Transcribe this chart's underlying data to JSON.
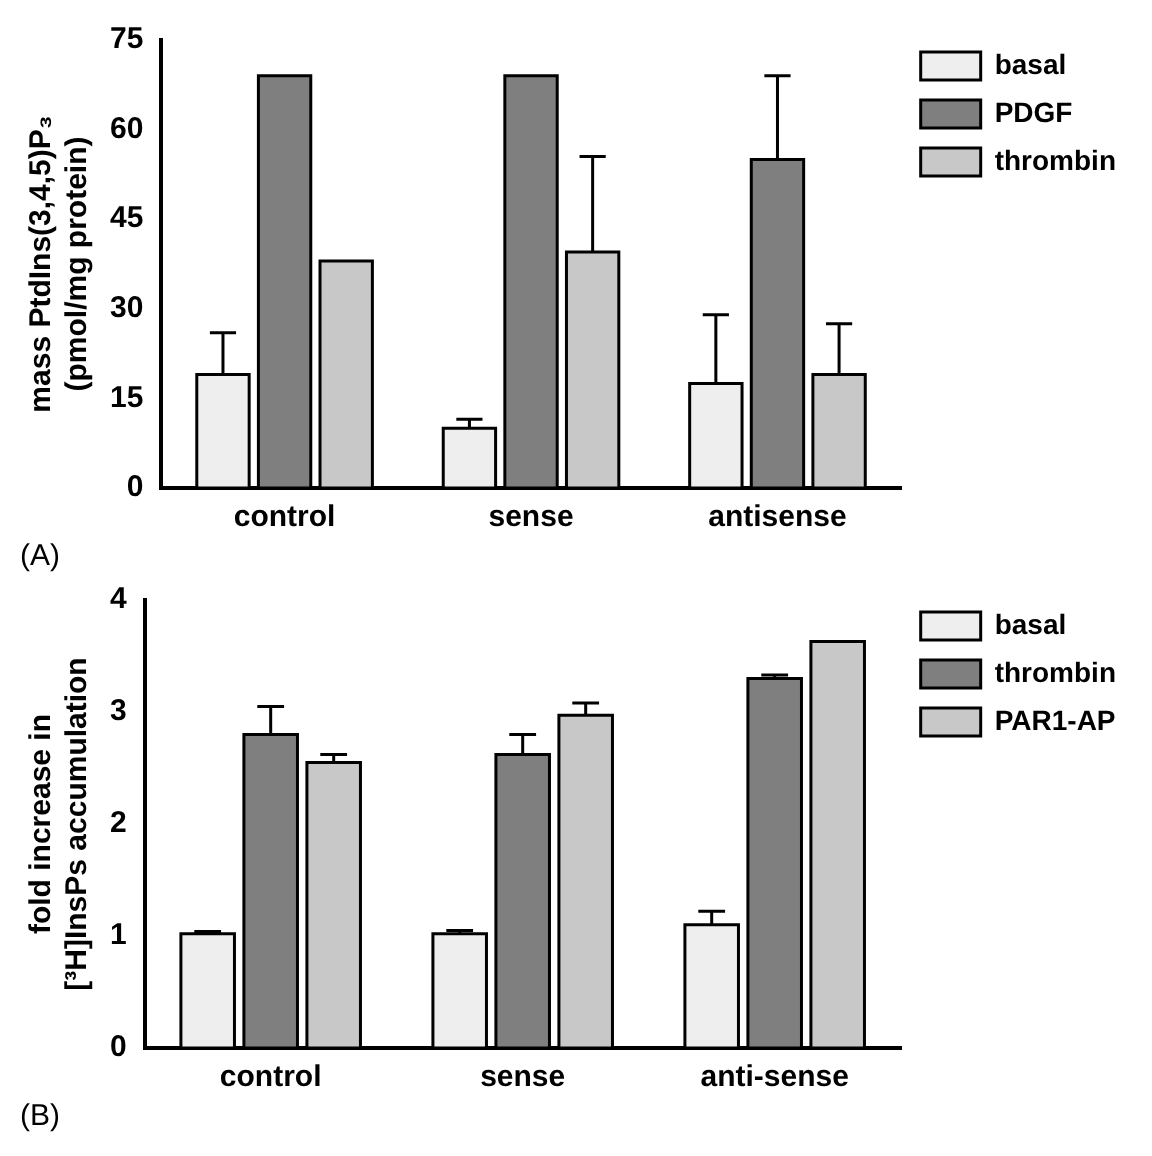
{
  "chart_data": [
    {
      "type": "bar",
      "ylabel": "mass PtdIns(3,4,5)P₃\n(pmol/mg protein)",
      "categories": [
        "control",
        "sense",
        "antisense"
      ],
      "series": [
        {
          "name": "basal",
          "color": "#eeeeee",
          "values": [
            19,
            10,
            17.5
          ],
          "errors": [
            [
              19,
              26
            ],
            [
              10,
              11.5
            ],
            [
              17.5,
              29
            ]
          ]
        },
        {
          "name": "PDGF",
          "color": "#7f7f7f",
          "values": [
            69,
            69,
            55
          ],
          "errors": [
            null,
            null,
            [
              55,
              69
            ]
          ]
        },
        {
          "name": "thrombin",
          "color": "#c8c8c8",
          "values": [
            38,
            39.5,
            19
          ],
          "errors": [
            null,
            [
              39.5,
              55.5
            ],
            [
              19,
              27.5
            ]
          ]
        }
      ],
      "ylim": [
        0,
        75
      ],
      "yticks": [
        0,
        15,
        30,
        45,
        60,
        75
      ],
      "grid": false,
      "legend": "top right",
      "annotations": [
        "(A)"
      ]
    },
    {
      "type": "bar",
      "ylabel": "fold increase in\n[³H]InsPs accumulation",
      "categories": [
        "control",
        "sense",
        "anti-sense"
      ],
      "series": [
        {
          "name": "basal",
          "color": "#eeeeee",
          "values": [
            1.02,
            1.02,
            1.1
          ],
          "errors": [
            [
              1.02,
              1.04
            ],
            [
              1.02,
              1.05
            ],
            [
              1.1,
              1.22
            ]
          ]
        },
        {
          "name": "thrombin",
          "color": "#7f7f7f",
          "values": [
            2.8,
            2.62,
            3.3
          ],
          "errors": [
            [
              2.8,
              3.05
            ],
            [
              2.62,
              2.8
            ],
            [
              3.3,
              3.33
            ]
          ]
        },
        {
          "name": "PAR1-AP",
          "color": "#c8c8c8",
          "values": [
            2.55,
            2.97,
            3.63
          ],
          "errors": [
            [
              2.55,
              2.62
            ],
            [
              2.97,
              3.08
            ],
            null
          ]
        }
      ],
      "ylim": [
        0,
        4
      ],
      "yticks": [
        0,
        1,
        2,
        3,
        4
      ],
      "grid": false,
      "legend": "top right",
      "annotations": [
        "(B)"
      ]
    }
  ]
}
